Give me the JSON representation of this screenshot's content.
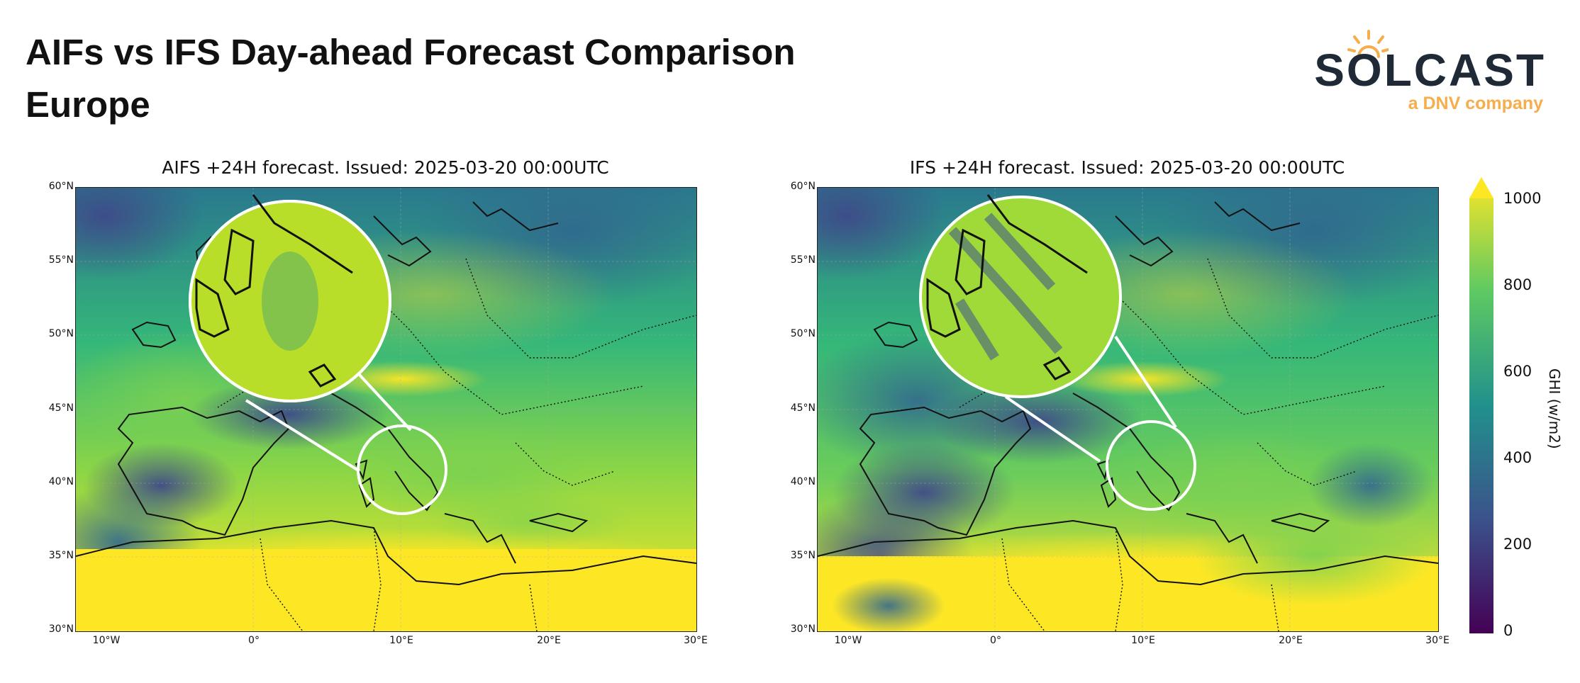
{
  "header": {
    "title_line1": "AIFs vs IFS Day-ahead Forecast Comparison",
    "title_line2": "Europe"
  },
  "logo": {
    "wordmark": "SOLCAST",
    "tagline": "a DNV company",
    "primary_color": "#1f2a36",
    "accent_color": "#f6ad4c"
  },
  "panels": [
    {
      "title": "AIFS +24H forecast. Issued: 2025-03-20 00:00UTC",
      "lat_ticks": [
        "60°N",
        "55°N",
        "50°N",
        "45°N",
        "40°N",
        "35°N",
        "30°N"
      ],
      "lon_ticks": [
        "10°W",
        "0°",
        "10°E",
        "20°E",
        "30°E"
      ]
    },
    {
      "title": "IFS +24H forecast. Issued: 2025-03-20 00:00UTC",
      "lat_ticks": [
        "60°N",
        "55°N",
        "50°N",
        "45°N",
        "40°N",
        "35°N",
        "30°N"
      ],
      "lon_ticks": [
        "10°W",
        "0°",
        "10°E",
        "20°E",
        "30°E"
      ]
    }
  ],
  "colorbar": {
    "label": "GHI (w/m2)",
    "ticks": [
      "1000",
      "800",
      "600",
      "400",
      "200",
      "0"
    ],
    "min": 0,
    "max": 1000,
    "colormap": "viridis",
    "extend": "max",
    "colors": [
      "#440154",
      "#3b528b",
      "#21918c",
      "#5ec962",
      "#fde725"
    ]
  }
}
